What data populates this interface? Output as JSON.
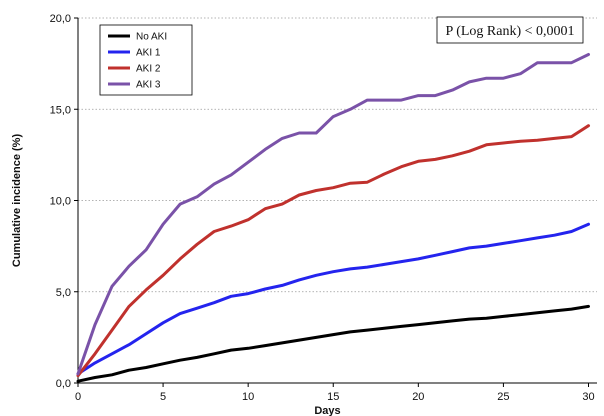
{
  "chart_data": {
    "type": "line",
    "title": "",
    "xlabel": "Days",
    "ylabel": "Cumulative incidence (%)",
    "xlim": [
      0,
      30.5
    ],
    "ylim": [
      0,
      20
    ],
    "x_ticks": [
      0,
      5,
      10,
      15,
      20,
      25,
      30
    ],
    "x_tick_labels": [
      "0",
      "5",
      "10",
      "15",
      "20",
      "25",
      "30"
    ],
    "y_ticks": [
      0,
      5,
      10,
      15,
      20
    ],
    "y_tick_labels": [
      "0,0",
      "5,0",
      "10,0",
      "15,0",
      "20,0"
    ],
    "grid": "horizontal dotted",
    "legend_position": "top-left",
    "annotation": "P (Log Rank) < 0,0001",
    "series": [
      {
        "name": "No AKI",
        "color": "#000000",
        "x": [
          0,
          1,
          2,
          3,
          4,
          5,
          6,
          7,
          8,
          9,
          10,
          11,
          12,
          13,
          14,
          15,
          16,
          17,
          18,
          19,
          20,
          21,
          22,
          23,
          24,
          25,
          26,
          27,
          28,
          29,
          30
        ],
        "y": [
          0.1,
          0.3,
          0.45,
          0.7,
          0.85,
          1.05,
          1.25,
          1.4,
          1.6,
          1.8,
          1.9,
          2.05,
          2.2,
          2.35,
          2.5,
          2.65,
          2.8,
          2.9,
          3.0,
          3.1,
          3.2,
          3.3,
          3.4,
          3.5,
          3.55,
          3.65,
          3.75,
          3.85,
          3.95,
          4.05,
          4.2
        ]
      },
      {
        "name": "AKI 1",
        "color": "#2424ee",
        "x": [
          0,
          1,
          2,
          3,
          4,
          5,
          6,
          7,
          8,
          9,
          10,
          11,
          12,
          13,
          14,
          15,
          16,
          17,
          18,
          19,
          20,
          21,
          22,
          23,
          24,
          25,
          26,
          27,
          28,
          29,
          30
        ],
        "y": [
          0.5,
          1.1,
          1.6,
          2.1,
          2.7,
          3.3,
          3.8,
          4.1,
          4.4,
          4.75,
          4.9,
          5.15,
          5.35,
          5.65,
          5.9,
          6.1,
          6.25,
          6.35,
          6.5,
          6.65,
          6.8,
          7.0,
          7.2,
          7.4,
          7.5,
          7.65,
          7.8,
          7.95,
          8.1,
          8.3,
          8.7
        ]
      },
      {
        "name": "AKI 2",
        "color": "#c0312d",
        "x": [
          0,
          1,
          2,
          3,
          4,
          5,
          6,
          7,
          8,
          9,
          10,
          11,
          12,
          13,
          14,
          15,
          16,
          17,
          18,
          19,
          20,
          21,
          22,
          23,
          24,
          25,
          26,
          27,
          28,
          29,
          30
        ],
        "y": [
          0.4,
          1.6,
          2.9,
          4.2,
          5.1,
          5.9,
          6.8,
          7.6,
          8.3,
          8.6,
          8.95,
          9.55,
          9.8,
          10.3,
          10.55,
          10.7,
          10.95,
          11.0,
          11.45,
          11.85,
          12.15,
          12.25,
          12.45,
          12.7,
          13.05,
          13.15,
          13.25,
          13.3,
          13.4,
          13.5,
          14.1
        ]
      },
      {
        "name": "AKI 3",
        "color": "#7a52a8",
        "x": [
          0,
          1,
          2,
          3,
          4,
          5,
          6,
          7,
          8,
          9,
          10,
          11,
          12,
          13,
          14,
          15,
          16,
          17,
          18,
          19,
          20,
          21,
          22,
          23,
          24,
          25,
          26,
          27,
          28,
          29,
          30
        ],
        "y": [
          0.5,
          3.2,
          5.3,
          6.4,
          7.3,
          8.7,
          9.8,
          10.2,
          10.9,
          11.4,
          12.1,
          12.8,
          13.4,
          13.7,
          13.7,
          14.6,
          15.0,
          15.5,
          15.5,
          15.5,
          15.75,
          15.75,
          16.05,
          16.5,
          16.7,
          16.7,
          16.95,
          17.55,
          17.55,
          17.55,
          18.0
        ]
      }
    ]
  }
}
